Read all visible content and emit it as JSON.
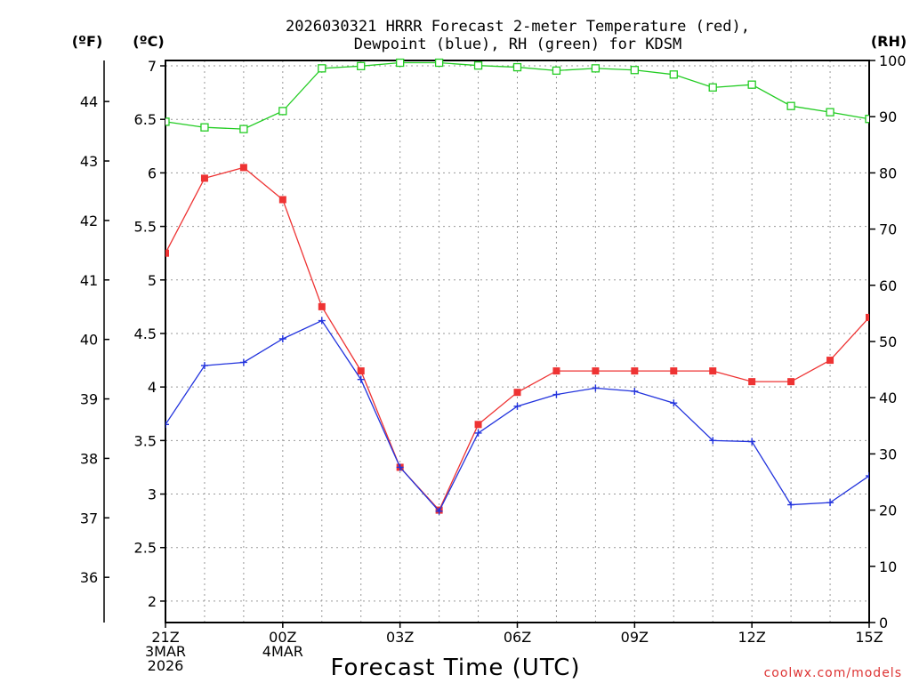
{
  "chart_data": {
    "type": "line",
    "title_line1": "2026030321 HRRR Forecast 2-meter Temperature (red),",
    "title_line2": "Dewpoint (blue), RH (green) for KDSM",
    "xlabel": "Forecast Time (UTC)",
    "credit": "coolwx.com/models",
    "left_outer_unit": "(ºF)",
    "left_inner_unit": "(ºC)",
    "right_unit": "(RH)",
    "hours": [
      0,
      1,
      2,
      3,
      4,
      5,
      6,
      7,
      8,
      9,
      10,
      11,
      12,
      13,
      14,
      15,
      16,
      17,
      18
    ],
    "xlim": [
      0,
      18
    ],
    "x_ticks": [
      {
        "h": 0,
        "l1": "21Z",
        "l2": "3MAR",
        "l3": "2026"
      },
      {
        "h": 3,
        "l1": "00Z",
        "l2": "4MAR",
        "l3": ""
      },
      {
        "h": 6,
        "l1": "03Z",
        "l2": "",
        "l3": ""
      },
      {
        "h": 9,
        "l1": "06Z",
        "l2": "",
        "l3": ""
      },
      {
        "h": 12,
        "l1": "09Z",
        "l2": "",
        "l3": ""
      },
      {
        "h": 15,
        "l1": "12Z",
        "l2": "",
        "l3": ""
      },
      {
        "h": 18,
        "l1": "15Z",
        "l2": "",
        "l3": ""
      }
    ],
    "ylim_c": [
      1.8,
      7.05
    ],
    "yticks_c": [
      "2",
      "2.5",
      "3",
      "3.5",
      "4",
      "4.5",
      "5",
      "5.5",
      "6",
      "6.5",
      "7"
    ],
    "yticks_f": [
      "36",
      "37",
      "38",
      "39",
      "40",
      "41",
      "42",
      "43",
      "44"
    ],
    "ylim_rh": [
      0,
      100
    ],
    "yticks_rh": [
      "0",
      "10",
      "20",
      "30",
      "40",
      "50",
      "60",
      "70",
      "80",
      "90",
      "100"
    ],
    "series": [
      {
        "name": "Temperature",
        "color": "#ee3333",
        "marker": "filled-square",
        "values": [
          5.25,
          5.95,
          6.05,
          5.75,
          4.75,
          4.15,
          3.25,
          2.85,
          3.65,
          3.95,
          4.15,
          4.15,
          4.15,
          4.15,
          4.15,
          4.05,
          4.05,
          4.25,
          4.65
        ]
      },
      {
        "name": "Dewpoint",
        "color": "#2233dd",
        "marker": "plus",
        "values": [
          3.65,
          4.2,
          4.23,
          4.45,
          4.62,
          4.07,
          3.25,
          2.84,
          3.57,
          3.82,
          3.93,
          3.99,
          3.96,
          3.85,
          3.5,
          3.49,
          2.9,
          2.92,
          3.17
        ]
      },
      {
        "name": "RH",
        "color": "#22cc22",
        "marker": "open-square",
        "values": [
          89.1,
          88.1,
          87.8,
          91.0,
          98.6,
          99.0,
          99.6,
          99.6,
          99.1,
          98.8,
          98.2,
          98.6,
          98.3,
          97.5,
          95.2,
          95.7,
          91.9,
          90.8,
          89.6
        ]
      }
    ]
  }
}
